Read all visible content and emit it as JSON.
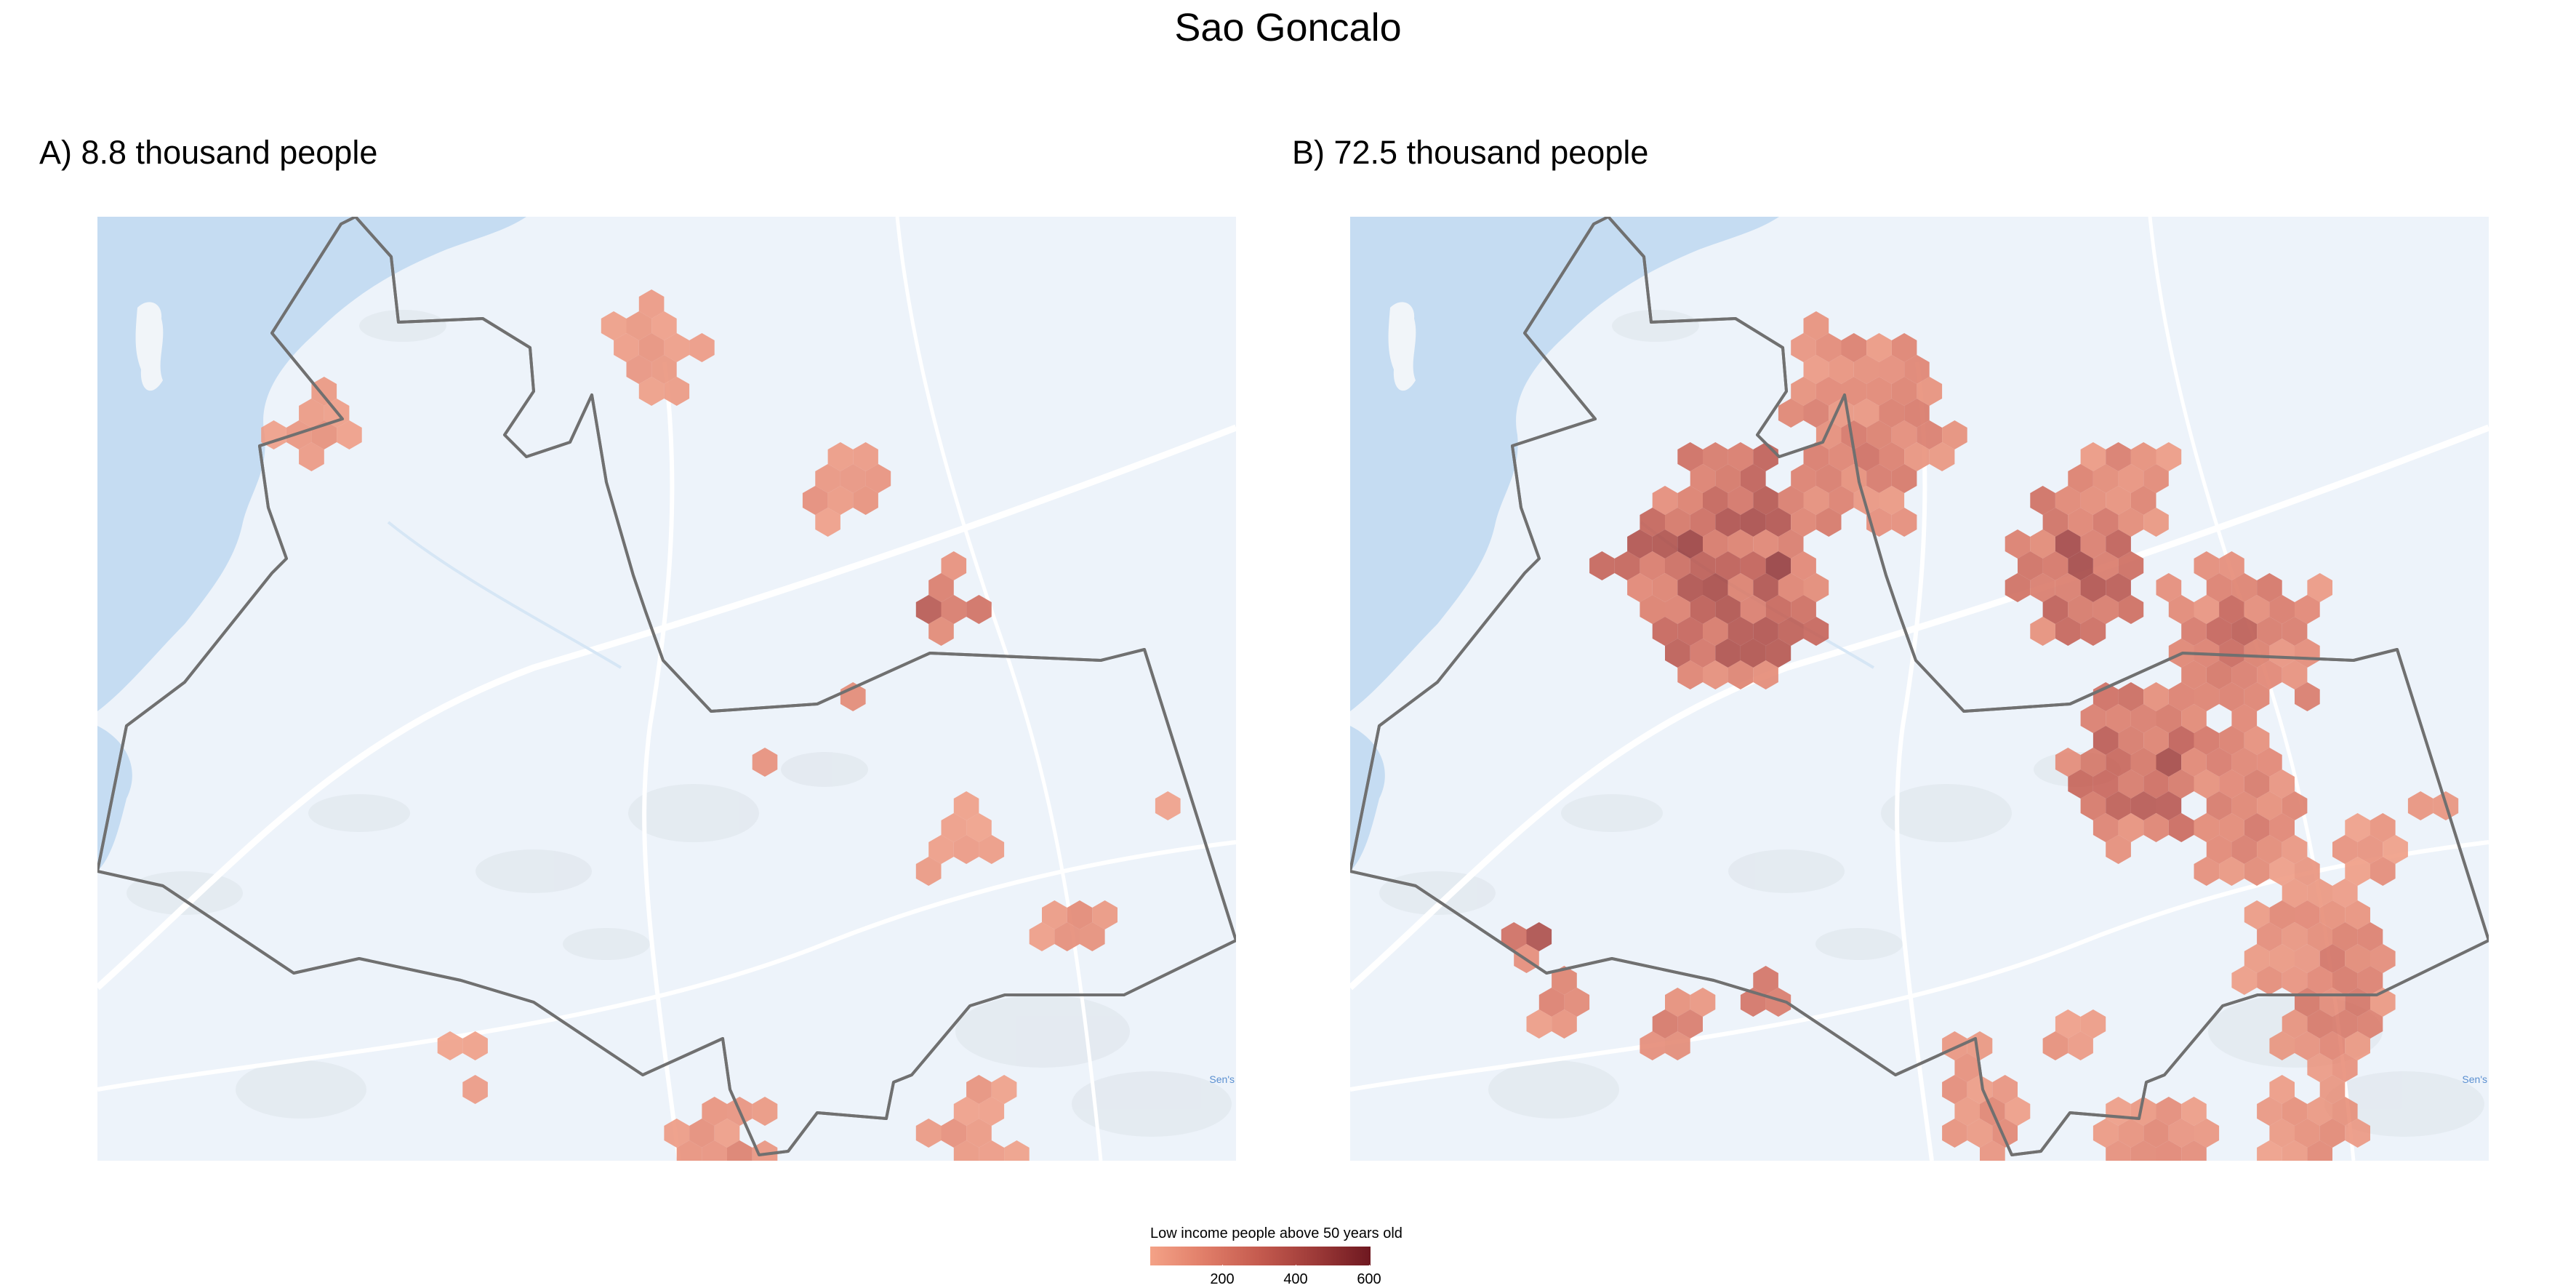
{
  "title": "Sao Goncalo",
  "panels": [
    {
      "id": "a",
      "title": "A) 8.8 thousand people",
      "attribution": "Sen's"
    },
    {
      "id": "b",
      "title": "B) 72.5 thousand people",
      "attribution": "Sen's"
    }
  ],
  "legend": {
    "title": "Low income people above 50 years old",
    "ticks": [
      "200",
      "400",
      "600"
    ],
    "tick_values": [
      200,
      400,
      600
    ],
    "range": [
      50,
      650
    ],
    "colors": [
      "#f4a287",
      "#e07d68",
      "#c45a4e",
      "#9d3a38",
      "#6e1820"
    ]
  },
  "colors": {
    "water": "#c5dcf2",
    "land": "#edf3fa",
    "boundary": "#707070",
    "hex_low": "#f4a287",
    "hex_high": "#6e1820"
  }
}
